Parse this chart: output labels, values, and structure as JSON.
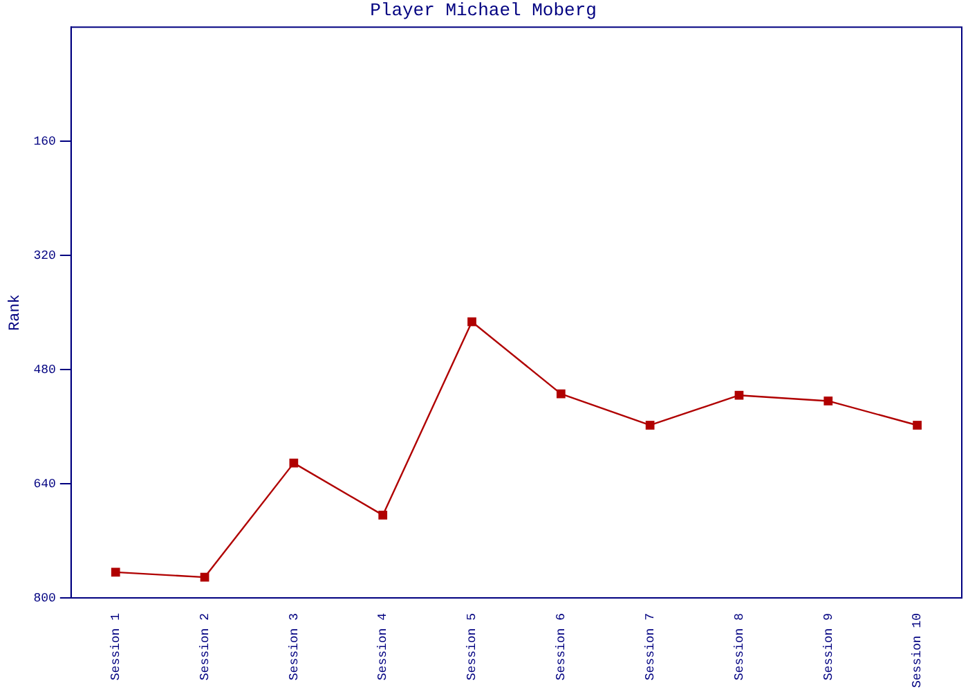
{
  "chart_data": {
    "type": "line",
    "title": "Player Michael Moberg",
    "ylabel": "Rank",
    "categories": [
      "Session 1",
      "Session 2",
      "Session 3",
      "Session 4",
      "Session 5",
      "Session 6",
      "Session 7",
      "Session 8",
      "Session 9",
      "Session 10"
    ],
    "series": [
      {
        "color": "#b00000",
        "values": [
          764,
          771,
          611,
          684,
          413,
          514,
          558,
          516,
          524,
          558
        ]
      }
    ],
    "ylim": [
      800,
      0
    ],
    "yticks": [
      160,
      320,
      480,
      640,
      800
    ],
    "grid": false,
    "legend": false,
    "marker": "square",
    "line_style": "solid"
  }
}
